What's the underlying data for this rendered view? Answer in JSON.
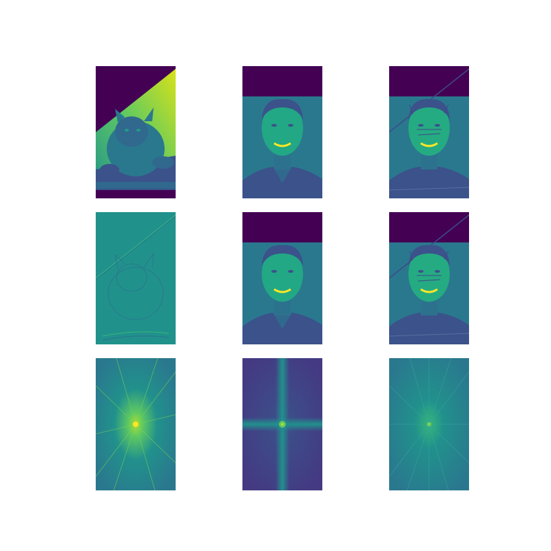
{
  "figure": {
    "grid": "3x3",
    "colormap": "viridis",
    "colors": {
      "viridis_dark": "#440154",
      "viridis_blue": "#3b528b",
      "viridis_teal": "#21918c",
      "viridis_green": "#5ec962",
      "viridis_yellow": "#fde725",
      "background": "#ffffff"
    },
    "panels": [
      {
        "row": 1,
        "col": 1,
        "content": "cat-photo-rotated"
      },
      {
        "row": 1,
        "col": 2,
        "content": "man-portrait"
      },
      {
        "row": 1,
        "col": 3,
        "content": "hybrid-image"
      },
      {
        "row": 2,
        "col": 1,
        "content": "cat-highpass-edges"
      },
      {
        "row": 2,
        "col": 2,
        "content": "man-lowpass"
      },
      {
        "row": 2,
        "col": 3,
        "content": "hybrid-image-repeat"
      },
      {
        "row": 3,
        "col": 1,
        "content": "cat-fft-spectrum"
      },
      {
        "row": 3,
        "col": 2,
        "content": "man-fft-spectrum"
      },
      {
        "row": 3,
        "col": 3,
        "content": "hybrid-fft-spectrum"
      }
    ]
  }
}
